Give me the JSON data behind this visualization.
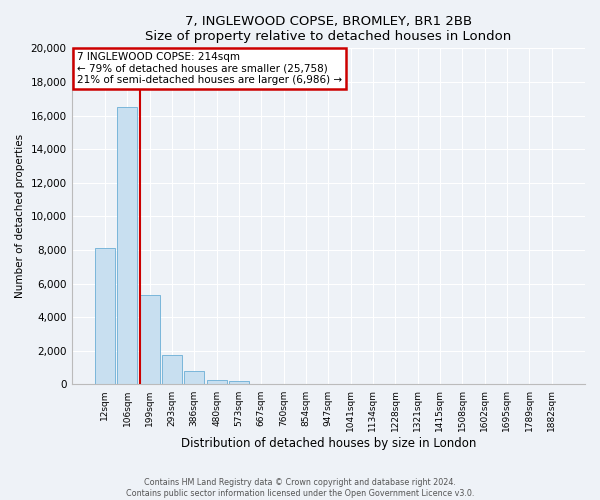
{
  "title": "7, INGLEWOOD COPSE, BROMLEY, BR1 2BB",
  "subtitle": "Size of property relative to detached houses in London",
  "xlabel": "Distribution of detached houses by size in London",
  "ylabel": "Number of detached properties",
  "bar_labels": [
    "12sqm",
    "106sqm",
    "199sqm",
    "293sqm",
    "386sqm",
    "480sqm",
    "573sqm",
    "667sqm",
    "760sqm",
    "854sqm",
    "947sqm",
    "1041sqm",
    "1134sqm",
    "1228sqm",
    "1321sqm",
    "1415sqm",
    "1508sqm",
    "1602sqm",
    "1695sqm",
    "1789sqm",
    "1882sqm"
  ],
  "bar_values": [
    8100,
    16500,
    5300,
    1750,
    780,
    290,
    190,
    0,
    0,
    0,
    0,
    0,
    0,
    0,
    0,
    0,
    0,
    0,
    0,
    0,
    0
  ],
  "bar_color": "#c8dff0",
  "bar_edge_color": "#6aaed6",
  "ylim": [
    0,
    20000
  ],
  "yticks": [
    0,
    2000,
    4000,
    6000,
    8000,
    10000,
    12000,
    14000,
    16000,
    18000,
    20000
  ],
  "vline_color": "#cc0000",
  "annotation_title": "7 INGLEWOOD COPSE: 214sqm",
  "annotation_line1": "← 79% of detached houses are smaller (25,758)",
  "annotation_line2": "21% of semi-detached houses are larger (6,986) →",
  "annotation_box_color": "#cc0000",
  "footer_line1": "Contains HM Land Registry data © Crown copyright and database right 2024.",
  "footer_line2": "Contains public sector information licensed under the Open Government Licence v3.0.",
  "bg_color": "#eef2f7",
  "plot_bg_color": "#eef2f7",
  "grid_color": "#ffffff"
}
